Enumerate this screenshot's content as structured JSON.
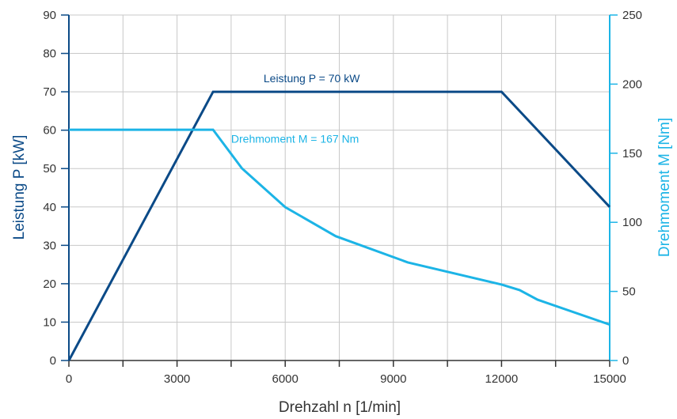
{
  "colors": {
    "power": "#0b4a87",
    "torque": "#1cb4e6",
    "grid": "#c8c8c8",
    "axis": "#333333",
    "text": "#333333"
  },
  "chart_data": {
    "type": "line",
    "title": "",
    "xlabel": "Drehzahl n [1/min]",
    "ylabel_left": "Leistung P [kW]",
    "ylabel_right": "Drehmoment M [Nm]",
    "xlim": [
      0,
      15000
    ],
    "ylim_left": [
      0,
      90
    ],
    "ylim_right": [
      0,
      250
    ],
    "x_ticks": [
      0,
      3000,
      6000,
      9000,
      12000,
      15000
    ],
    "y_left_ticks": [
      0,
      10,
      20,
      30,
      40,
      50,
      60,
      70,
      80,
      90
    ],
    "y_right_ticks": [
      0,
      50,
      100,
      150,
      200,
      250
    ],
    "grid": true,
    "series": [
      {
        "name": "Leistung P = 70 kW",
        "axis": "left",
        "color": "#0b4a87",
        "x": [
          0,
          4000,
          12000,
          15000
        ],
        "y": [
          0,
          70,
          70,
          40
        ]
      },
      {
        "name": "Drehmoment M = 167 Nm",
        "axis": "right",
        "color": "#1cb4e6",
        "x": [
          0,
          4000,
          4800,
          6000,
          7400,
          9400,
          12000,
          12500,
          13000,
          15000
        ],
        "y": [
          167,
          167,
          139,
          111,
          90,
          71,
          55,
          51,
          44,
          26
        ]
      }
    ],
    "annotations": [
      {
        "text": "Leistung P = 70 kW",
        "series": 0,
        "x": 5400,
        "y": 72.5,
        "axis": "left"
      },
      {
        "text": "Drehmoment M = 167 Nm",
        "series": 1,
        "x": 4500,
        "y": 157.5,
        "axis": "right"
      }
    ]
  }
}
